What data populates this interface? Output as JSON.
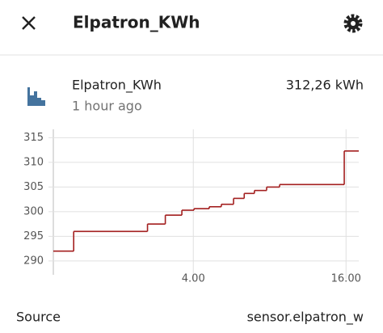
{
  "header": {
    "title": "Elpatron_KWh"
  },
  "entity": {
    "name": "Elpatron_KWh",
    "last_changed": "1 hour ago",
    "state": "312,26 kWh"
  },
  "chart_data": {
    "type": "line",
    "step": true,
    "color": "#a31f1f",
    "grid": true,
    "series": [
      {
        "name": "Elpatron_KWh",
        "color": "#a31f1f",
        "x": [
          0,
          1.6,
          7.4,
          8.8,
          10.1,
          11.05,
          12.25,
          13.2,
          14.16,
          15.0,
          15.8,
          16.76,
          17.78,
          22.86,
          24
        ],
        "values": [
          292,
          296,
          297.5,
          299.3,
          300.3,
          300.6,
          301,
          301.5,
          302.7,
          303.7,
          304.3,
          305,
          305.5,
          312.3,
          312.3
        ]
      }
    ],
    "xlim": [
      0,
      24
    ],
    "xticks": [
      {
        "value": 11,
        "label": "4.00"
      },
      {
        "value": 23,
        "label": "16.00"
      }
    ],
    "ylim": [
      287.2,
      316.7
    ],
    "yticks": [
      290,
      295,
      300,
      305,
      310,
      315
    ]
  },
  "attributes": [
    {
      "label": "Source",
      "value": "sensor.elpatron_w"
    }
  ]
}
